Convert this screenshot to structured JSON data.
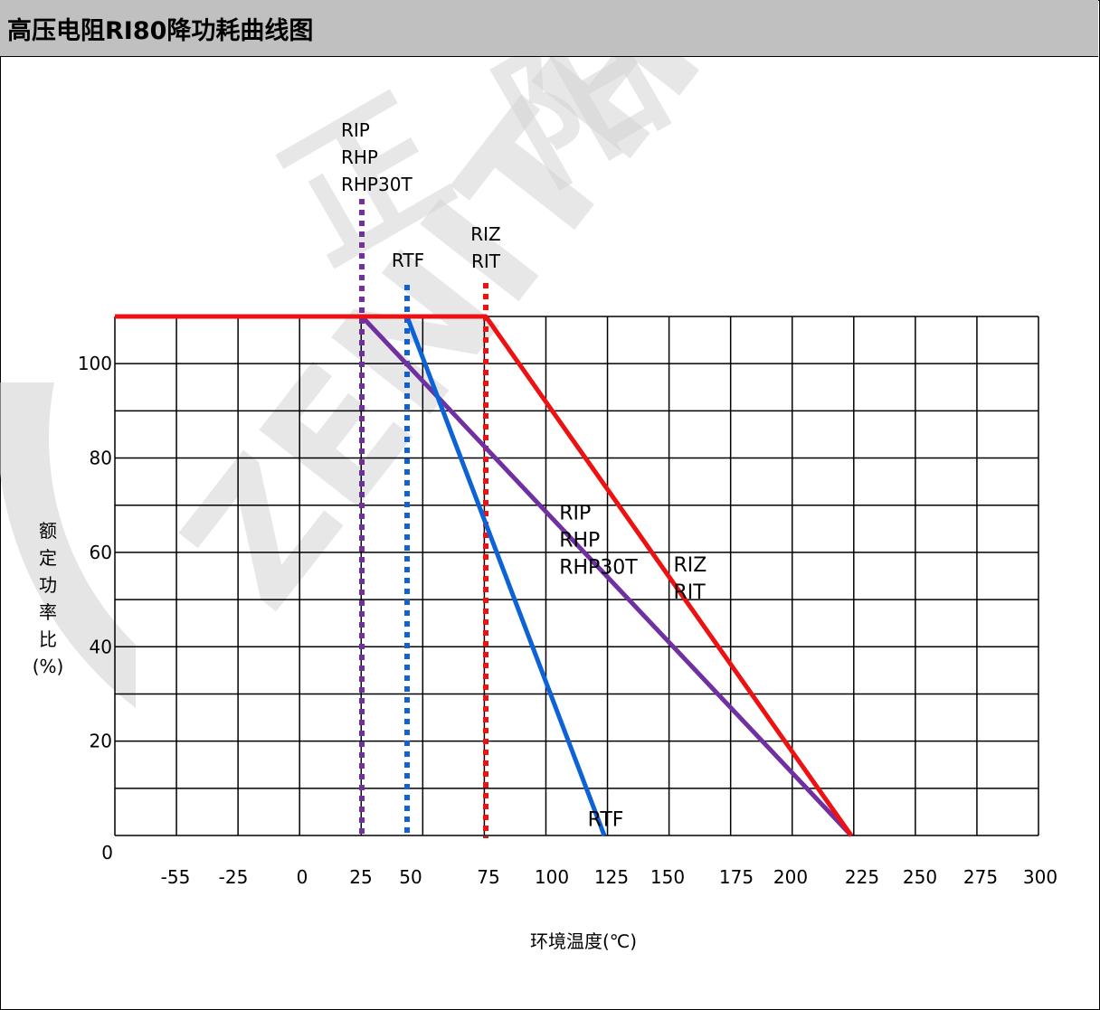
{
  "title": "高压电阻RI80降功耗曲线图",
  "chart_data": {
    "type": "line",
    "xlabel": "环境温度(℃)",
    "ylabel": [
      "额",
      "定",
      "功",
      "率",
      "比",
      "(%)"
    ],
    "x_tick_labels": [
      "-55",
      "-25",
      "0",
      "25",
      "50",
      "75",
      "100",
      "125",
      "150",
      "175",
      "200",
      "225",
      "250",
      "275",
      "300"
    ],
    "y_tick_labels": [
      "0",
      "20",
      "40",
      "60",
      "80",
      "100"
    ],
    "ylim": [
      0,
      110
    ],
    "grid": true,
    "series": [
      {
        "name": "RIP / RHP / RHP30T",
        "color": "#7030a0",
        "points": [
          [
            -55,
            110
          ],
          [
            25,
            110
          ],
          [
            225,
            0
          ]
        ],
        "threshold": 25,
        "threshold_labels": [
          "RIP",
          "RHP",
          "RHP30T"
        ]
      },
      {
        "name": "RTF",
        "color": "#0d63d6",
        "points": [
          [
            -55,
            110
          ],
          [
            50,
            110
          ],
          [
            125,
            0
          ]
        ],
        "threshold": 50,
        "threshold_labels": [
          "RTF"
        ]
      },
      {
        "name": "RIZ / RIT",
        "color": "#ee1111",
        "points": [
          [
            -55,
            110
          ],
          [
            75,
            110
          ],
          [
            225,
            0
          ]
        ],
        "threshold": 75,
        "threshold_labels": [
          "RIZ",
          "RIT"
        ]
      }
    ],
    "annotations": [
      {
        "lines": [
          "RIP",
          "RHP",
          "RHP30T"
        ],
        "x": 106,
        "y": 67
      },
      {
        "lines": [
          "RIZ",
          "RIT"
        ],
        "x": 153,
        "y": 56
      },
      {
        "lines": [
          "RTF"
        ],
        "x": 118,
        "y": 2
      }
    ]
  },
  "watermark": {
    "latin": "ZENITHSUN",
    "cjk": [
      "正",
      "阳"
    ],
    "color": "#d3d3d3"
  }
}
